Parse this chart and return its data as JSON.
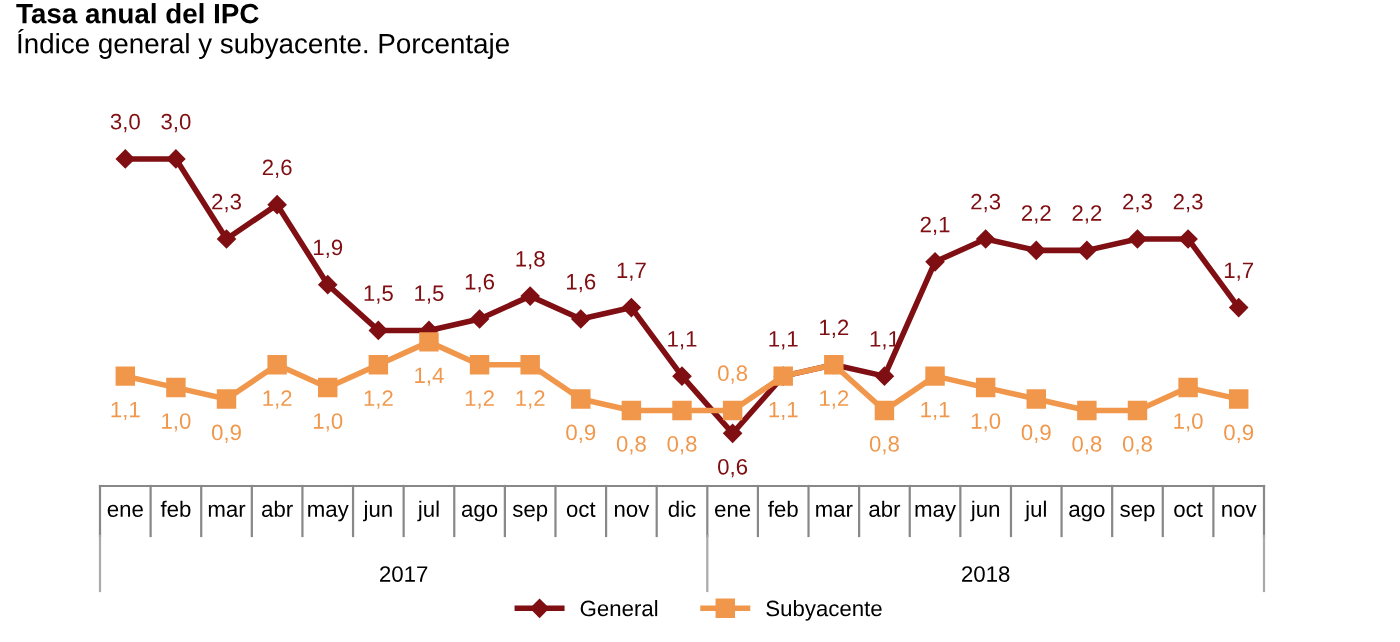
{
  "chart_data": {
    "type": "line",
    "title": "Tasa anual del IPC",
    "subtitle": "Índice general y subyacente. Porcentaje",
    "categories": [
      "ene",
      "feb",
      "mar",
      "abr",
      "may",
      "jun",
      "jul",
      "ago",
      "sep",
      "oct",
      "nov",
      "dic",
      "ene",
      "feb",
      "mar",
      "abr",
      "may",
      "jun",
      "jul",
      "ago",
      "sep",
      "oct",
      "nov"
    ],
    "annotations": [
      "2017",
      "2018"
    ],
    "series": [
      {
        "name": "General",
        "color": "#7f0f12",
        "marker": "diamond",
        "values": [
          3.0,
          3.0,
          2.3,
          2.6,
          1.9,
          1.5,
          1.5,
          1.6,
          1.8,
          1.6,
          1.7,
          1.1,
          0.6,
          1.1,
          1.2,
          1.1,
          2.1,
          2.3,
          2.2,
          2.2,
          2.3,
          2.3,
          1.7
        ],
        "value_labels": [
          "3,0",
          "3,0",
          "2,3",
          "2,6",
          "1,9",
          "1,5",
          "1,5",
          "1,6",
          "1,8",
          "1,6",
          "1,7",
          "1,1",
          "0,6",
          "1,1",
          "1,2",
          "1,1",
          "2,1",
          "2,3",
          "2,2",
          "2,2",
          "2,3",
          "2,3",
          "1,7"
        ]
      },
      {
        "name": "Subyacente",
        "color": "#f0974b",
        "marker": "square",
        "values": [
          1.1,
          1.0,
          0.9,
          1.2,
          1.0,
          1.2,
          1.4,
          1.2,
          1.2,
          0.9,
          0.8,
          0.8,
          0.8,
          1.1,
          1.2,
          0.8,
          1.1,
          1.0,
          0.9,
          0.8,
          0.8,
          1.0,
          0.9
        ],
        "value_labels": [
          "1,1",
          "1,0",
          "0,9",
          "1,2",
          "1,0",
          "1,2",
          "1,4",
          "1,2",
          "1,2",
          "0,9",
          "0,8",
          "0,8",
          "0,8",
          "1,1",
          "1,2",
          "0,8",
          "1,1",
          "1,0",
          "0,9",
          "0,8",
          "0,8",
          "1,0",
          "0,9"
        ]
      }
    ],
    "legend": "bottom",
    "tick_labels": "x",
    "line_style": "solid"
  }
}
